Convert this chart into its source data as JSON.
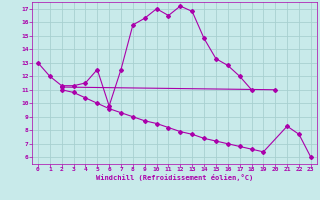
{
  "bg_color": "#c8eaea",
  "grid_color": "#a8d0d0",
  "line_color": "#aa00aa",
  "axis_color": "#aa00aa",
  "xlabel": "Windchill (Refroidissement éolien,°C)",
  "x_ticks": [
    0,
    1,
    2,
    3,
    4,
    5,
    6,
    7,
    8,
    9,
    10,
    11,
    12,
    13,
    14,
    15,
    16,
    17,
    18,
    19,
    20,
    21,
    22,
    23
  ],
  "y_ticks": [
    6,
    7,
    8,
    9,
    10,
    11,
    12,
    13,
    14,
    15,
    16,
    17
  ],
  "ylim": [
    5.5,
    17.5
  ],
  "xlim": [
    -0.5,
    23.5
  ],
  "line1_x": [
    0,
    1,
    2,
    3,
    4,
    5,
    6,
    7,
    8,
    9,
    10,
    11,
    12,
    13,
    14,
    15,
    16,
    17,
    18
  ],
  "line1_y": [
    13,
    12,
    11.3,
    11.3,
    11.5,
    12.5,
    9.8,
    12.5,
    15.8,
    16.3,
    17.0,
    16.5,
    17.2,
    16.8,
    14.8,
    13.3,
    12.8,
    12.0,
    11.0
  ],
  "line2_x": [
    2,
    20
  ],
  "line2_y": [
    11.2,
    11.0
  ],
  "line3_x": [
    2,
    3,
    4,
    5,
    6,
    7,
    8,
    9,
    10,
    11,
    12,
    13,
    14,
    15,
    16,
    17,
    18,
    19,
    21,
    22,
    23
  ],
  "line3_y": [
    11.0,
    10.8,
    10.4,
    10.0,
    9.6,
    9.3,
    9.0,
    8.7,
    8.5,
    8.2,
    7.9,
    7.7,
    7.4,
    7.2,
    7.0,
    6.8,
    6.6,
    6.4,
    8.3,
    7.7,
    6.0
  ]
}
